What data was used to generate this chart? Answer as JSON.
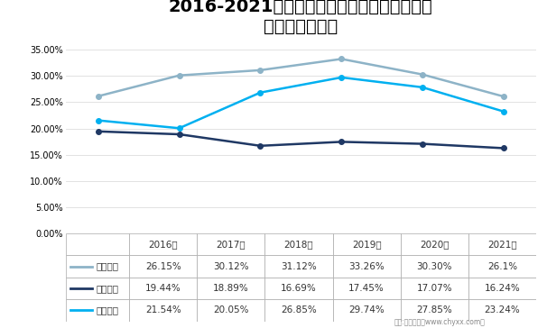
{
  "title_line1": "2016-2021年三一重工、徐工机械、中联重科",
  "title_line2": "工程机械毛利率",
  "years": [
    "2016年",
    "2017年",
    "2018年",
    "2019年",
    "2020年",
    "2021年"
  ],
  "series": [
    {
      "name": "三一重工",
      "values": [
        0.2615,
        0.3012,
        0.3112,
        0.3326,
        0.303,
        0.261
      ],
      "color": "#8DB3C7",
      "linewidth": 1.8,
      "marker": "o",
      "markersize": 4
    },
    {
      "name": "徐工机械",
      "values": [
        0.1944,
        0.1889,
        0.1669,
        0.1745,
        0.1707,
        0.1624
      ],
      "color": "#1F3864",
      "linewidth": 1.8,
      "marker": "o",
      "markersize": 4
    },
    {
      "name": "中联重科",
      "values": [
        0.2154,
        0.2005,
        0.2685,
        0.2974,
        0.2785,
        0.2324
      ],
      "color": "#00B0F0",
      "linewidth": 1.8,
      "marker": "o",
      "markersize": 4
    }
  ],
  "table_values": [
    [
      "26.15%",
      "30.12%",
      "31.12%",
      "33.26%",
      "30.30%",
      "26.1%"
    ],
    [
      "19.44%",
      "18.89%",
      "16.69%",
      "17.45%",
      "17.07%",
      "16.24%"
    ],
    [
      "21.54%",
      "20.05%",
      "26.85%",
      "29.74%",
      "27.85%",
      "23.24%"
    ]
  ],
  "ylim": [
    0.0,
    0.37
  ],
  "yticks": [
    0.0,
    0.05,
    0.1,
    0.15,
    0.2,
    0.25,
    0.3,
    0.35
  ],
  "ytick_labels": [
    "0.00%",
    "5.00%",
    "10.00%",
    "15.00%",
    "20.00%",
    "25.00%",
    "30.00%",
    "35.00%"
  ],
  "background_color": "#FFFFFF",
  "grid_color": "#DDDDDD",
  "title_color": "#000000",
  "title_fontsize": 14,
  "table_fontsize": 7.5,
  "watermark": "制图:智研咨询（www.chyxx.com）",
  "series_colors": [
    "#8DB3C7",
    "#1F3864",
    "#00B0F0"
  ],
  "series_names": [
    "三一重工",
    "徐工机械",
    "中联重科"
  ]
}
